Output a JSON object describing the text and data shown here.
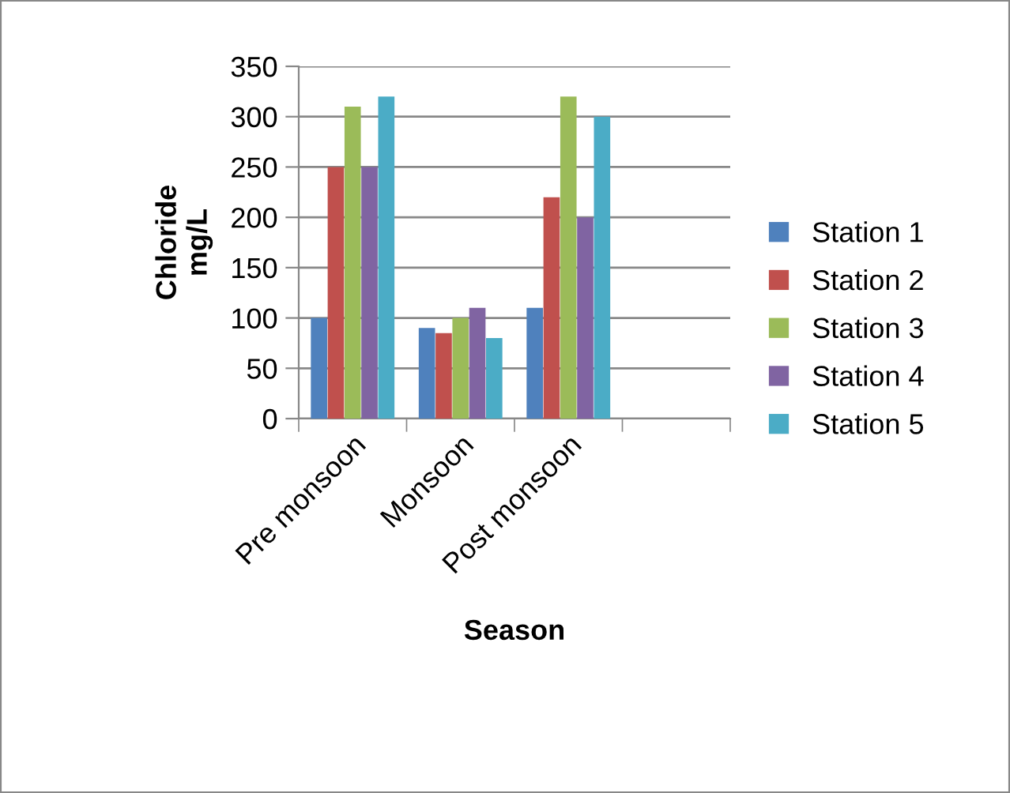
{
  "chart_data": {
    "type": "bar",
    "xlabel": "Season",
    "ylabel": "Chloride\nmg/L",
    "categories": [
      "Pre monsoon",
      "Monsoon",
      "Post monsoon",
      null
    ],
    "series": [
      {
        "name": "Station 1",
        "color": "#4f81bd",
        "values": [
          100,
          90,
          110,
          null
        ]
      },
      {
        "name": "Station 2",
        "color": "#c0504d",
        "values": [
          250,
          85,
          220,
          null
        ]
      },
      {
        "name": "Station 3",
        "color": "#9bbb59",
        "values": [
          310,
          100,
          320,
          null
        ]
      },
      {
        "name": "Station 4",
        "color": "#8064a2",
        "values": [
          250,
          110,
          200,
          null
        ]
      },
      {
        "name": "Station 5",
        "color": "#4bacc6",
        "values": [
          320,
          80,
          300,
          null
        ]
      }
    ],
    "ylim": [
      0,
      350
    ],
    "yticks": [
      0,
      50,
      100,
      150,
      200,
      250,
      300,
      350
    ],
    "grid": "y",
    "legend": "right"
  }
}
